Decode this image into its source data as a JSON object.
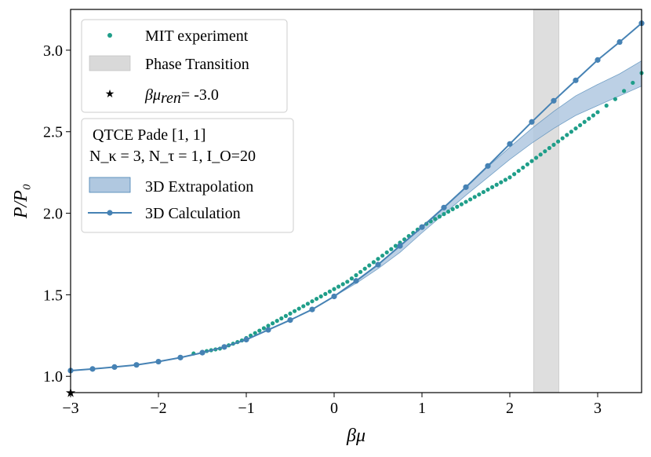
{
  "chart_data": {
    "type": "line",
    "title": "",
    "xlabel": "βμ",
    "ylabel": "P/P₀",
    "xlim": [
      -3.0,
      3.5
    ],
    "ylim": [
      0.9,
      3.25
    ],
    "grid": false,
    "x_ticks": [
      -3,
      -2,
      -1,
      0,
      1,
      2,
      3
    ],
    "x_tick_labels": [
      "−3",
      "−2",
      "−1",
      "0",
      "1",
      "2",
      "3"
    ],
    "y_ticks": [
      1.0,
      1.5,
      2.0,
      2.5,
      3.0
    ],
    "y_tick_labels": [
      "1.0",
      "1.5",
      "2.0",
      "2.5",
      "3.0"
    ],
    "colors": {
      "experiment": "#1f9e89",
      "calculation": "#4682b4",
      "extrapolation_fill": "#b0c8e0",
      "extrapolation_edge": "#4682b4",
      "phase_transition": "#d9d9d9"
    },
    "phase_transition": {
      "x_start": 2.27,
      "x_end": 2.56
    },
    "reference_point": {
      "x": -3.0,
      "y": 0.9
    },
    "series": [
      {
        "name": "MIT experiment",
        "kind": "scatter",
        "x": [
          -1.6,
          -1.5,
          -1.45,
          -1.4,
          -1.35,
          -1.3,
          -1.25,
          -1.2,
          -1.15,
          -1.1,
          -1.05,
          -1.0,
          -0.95,
          -0.9,
          -0.85,
          -0.8,
          -0.75,
          -0.7,
          -0.65,
          -0.6,
          -0.55,
          -0.5,
          -0.45,
          -0.4,
          -0.35,
          -0.3,
          -0.25,
          -0.2,
          -0.15,
          -0.1,
          -0.05,
          0.0,
          0.05,
          0.1,
          0.15,
          0.2,
          0.25,
          0.3,
          0.35,
          0.4,
          0.45,
          0.5,
          0.55,
          0.6,
          0.65,
          0.7,
          0.75,
          0.8,
          0.85,
          0.9,
          0.95,
          1.0,
          1.05,
          1.1,
          1.15,
          1.2,
          1.25,
          1.3,
          1.35,
          1.4,
          1.45,
          1.5,
          1.55,
          1.6,
          1.65,
          1.7,
          1.75,
          1.8,
          1.85,
          1.9,
          1.95,
          2.0,
          2.05,
          2.1,
          2.15,
          2.2,
          2.25,
          2.3,
          2.35,
          2.4,
          2.45,
          2.5,
          2.55,
          2.6,
          2.65,
          2.7,
          2.75,
          2.8,
          2.85,
          2.9,
          2.95,
          3.0,
          3.1,
          3.2,
          3.3,
          3.4,
          3.5
        ],
        "y": [
          1.14,
          1.15,
          1.155,
          1.16,
          1.165,
          1.17,
          1.18,
          1.19,
          1.2,
          1.21,
          1.22,
          1.235,
          1.25,
          1.265,
          1.28,
          1.295,
          1.31,
          1.325,
          1.34,
          1.355,
          1.37,
          1.385,
          1.4,
          1.415,
          1.43,
          1.445,
          1.46,
          1.475,
          1.49,
          1.505,
          1.52,
          1.535,
          1.55,
          1.565,
          1.58,
          1.6,
          1.62,
          1.64,
          1.66,
          1.68,
          1.7,
          1.72,
          1.74,
          1.76,
          1.78,
          1.8,
          1.82,
          1.84,
          1.86,
          1.88,
          1.9,
          1.92,
          1.935,
          1.95,
          1.965,
          1.98,
          1.995,
          2.01,
          2.025,
          2.04,
          2.055,
          2.07,
          2.085,
          2.1,
          2.115,
          2.13,
          2.145,
          2.16,
          2.175,
          2.19,
          2.205,
          2.22,
          2.24,
          2.26,
          2.28,
          2.3,
          2.32,
          2.34,
          2.36,
          2.38,
          2.4,
          2.42,
          2.44,
          2.46,
          2.48,
          2.5,
          2.52,
          2.54,
          2.56,
          2.58,
          2.6,
          2.62,
          2.66,
          2.7,
          2.75,
          2.8,
          2.86
        ]
      },
      {
        "name": "3D Calculation",
        "kind": "line-marker",
        "x": [
          -3.0,
          -2.75,
          -2.5,
          -2.25,
          -2.0,
          -1.75,
          -1.5,
          -1.25,
          -1.0,
          -0.75,
          -0.5,
          -0.25,
          0.0,
          0.25,
          0.5,
          0.75,
          1.0,
          1.25,
          1.5,
          1.75,
          2.0,
          2.25,
          2.5,
          2.75,
          3.0,
          3.25,
          3.5
        ],
        "y": [
          1.035,
          1.045,
          1.057,
          1.07,
          1.09,
          1.115,
          1.145,
          1.18,
          1.225,
          1.285,
          1.345,
          1.41,
          1.49,
          1.585,
          1.685,
          1.8,
          1.915,
          2.035,
          2.16,
          2.29,
          2.425,
          2.56,
          2.69,
          2.815,
          2.94,
          3.05,
          3.165
        ]
      },
      {
        "name": "3D Extrapolation",
        "kind": "band",
        "x": [
          0.0,
          0.25,
          0.5,
          0.75,
          1.0,
          1.25,
          1.5,
          1.75,
          2.0,
          2.25,
          2.5,
          2.75,
          3.0,
          3.25,
          3.5
        ],
        "y_low": [
          1.49,
          1.57,
          1.66,
          1.76,
          1.88,
          1.995,
          2.11,
          2.22,
          2.33,
          2.43,
          2.52,
          2.6,
          2.66,
          2.72,
          2.78
        ],
        "y_high": [
          1.49,
          1.58,
          1.685,
          1.8,
          1.92,
          2.04,
          2.16,
          2.285,
          2.405,
          2.52,
          2.625,
          2.72,
          2.79,
          2.855,
          2.935
        ]
      }
    ]
  },
  "legend1": {
    "experiment_label": "MIT experiment",
    "phase_label": "Phase Transition",
    "ref_label_var": "βμ",
    "ref_label_sub": "ren",
    "ref_label_value": "= -3.0"
  },
  "legend2": {
    "title_line1": "QTCE Pade [1, 1]",
    "title_line2": "N_κ = 3, N_τ = 1, I_O=20",
    "extrapolation_label": "3D Extrapolation",
    "calculation_label": "3D Calculation"
  }
}
